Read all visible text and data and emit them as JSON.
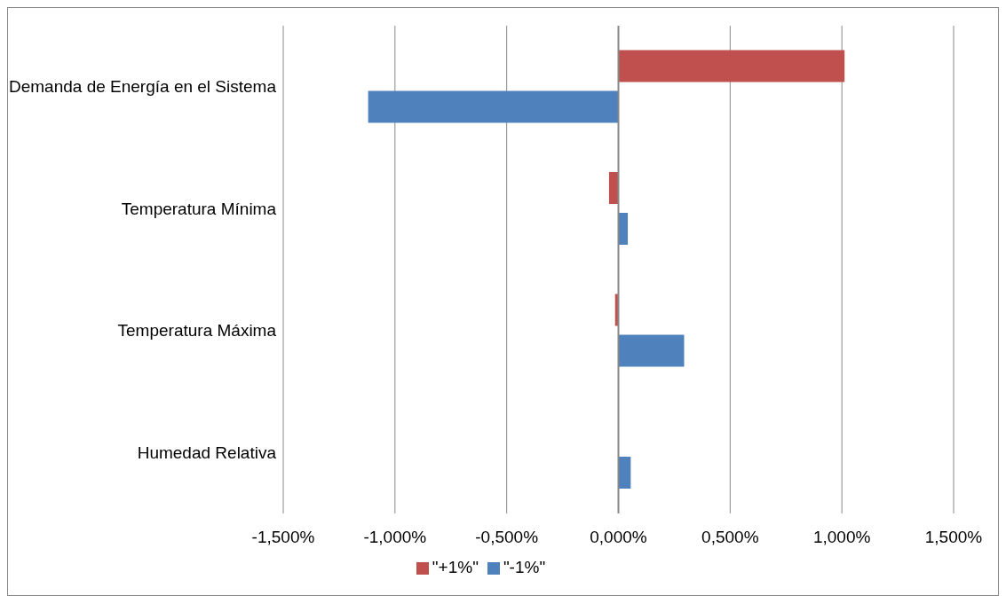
{
  "chart_data": {
    "type": "bar",
    "orientation": "horizontal",
    "categories": [
      "Demanda de Energía en el Sistema",
      "Temperatura Mínima",
      "Temperatura Máxima",
      "Humedad Relativa"
    ],
    "series": [
      {
        "name": "\"+1%\"",
        "color": "#c0504d",
        "values": [
          1.012,
          -0.042,
          -0.015,
          0
        ]
      },
      {
        "name": "\"-1%\"",
        "color": "#4f81bd",
        "values": [
          -1.12,
          0.042,
          0.294,
          0.055
        ]
      }
    ],
    "xlim": [
      -1.5,
      1.5
    ],
    "xticks": [
      {
        "value": -1.5,
        "label": "-1,500%"
      },
      {
        "value": -1,
        "label": "-1,000%"
      },
      {
        "value": -0.5,
        "label": "-0,500%"
      },
      {
        "value": 0,
        "label": "0,000%"
      },
      {
        "value": 0.5,
        "label": "0,500%"
      },
      {
        "value": 1,
        "label": "1,000%"
      },
      {
        "value": 1.5,
        "label": "1,500%"
      }
    ],
    "grid": "x",
    "legend": "bottom"
  }
}
